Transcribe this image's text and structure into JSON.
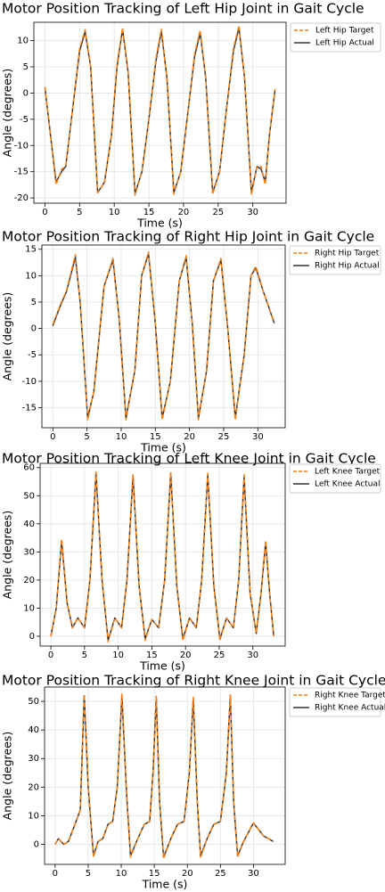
{
  "chart_data": [
    {
      "type": "line",
      "title": "Motor Position Tracking of Left Hip Joint in Gait Cycle",
      "x_label": "Time (s)",
      "y_label": "Angle (degrees)",
      "x": [
        0,
        0.8,
        1.6,
        2.4,
        3.0,
        4.0,
        5.0,
        5.8,
        6.6,
        7.6,
        8.6,
        9.6,
        10.4,
        11.2,
        12.0,
        13.0,
        14.0,
        15.0,
        16.0,
        16.8,
        17.6,
        18.6,
        19.6,
        20.6,
        21.6,
        22.4,
        23.2,
        24.2,
        25.2,
        26.2,
        27.2,
        28.0,
        28.8,
        29.8,
        30.6,
        31.2,
        31.8,
        32.4,
        33.2
      ],
      "series": [
        {
          "name": "Left Hip Target",
          "color": "#ff7f0e",
          "dashed": true,
          "values": [
            1.2,
            -8,
            -17.5,
            -14.5,
            -14,
            -3,
            8.5,
            12.1,
            5,
            -19,
            -17,
            -8,
            5.5,
            12.5,
            4,
            -19.5,
            -15,
            -5,
            6.5,
            12.2,
            3,
            -19.3,
            -15,
            -4,
            7.5,
            12,
            3,
            -19.3,
            -15,
            -3,
            8.5,
            12.9,
            3,
            -19.3,
            -14,
            -14,
            -17.5,
            -8,
            0.8
          ]
        },
        {
          "name": "Left Hip Actual",
          "color": "#333333",
          "dashed": false,
          "values": [
            1,
            -8,
            -17,
            -15,
            -14,
            -3,
            8,
            11.7,
            5,
            -19,
            -17,
            -8,
            5,
            12.2,
            4,
            -19.2,
            -15,
            -5,
            6,
            11.8,
            3,
            -19,
            -15,
            -4,
            7,
            11.5,
            3,
            -19,
            -15,
            -3,
            8,
            12.5,
            3,
            -19,
            -14,
            -14.5,
            -17,
            -8,
            0.5
          ]
        }
      ],
      "xlim": [
        -1.6,
        34.8
      ],
      "ylim": [
        -21,
        13.5
      ],
      "xticks": [
        0,
        5,
        10,
        15,
        20,
        25,
        30
      ],
      "yticks": [
        -20,
        -15,
        -10,
        -5,
        0,
        5,
        10
      ],
      "grid": true,
      "legend": "outside-right"
    },
    {
      "type": "line",
      "title": "Motor Position Tracking of Right Hip Joint in Gait Cycle",
      "x_label": "Time (s)",
      "y_label": "Angle (degrees)",
      "x": [
        0,
        1,
        2,
        3.3,
        4,
        5.1,
        6,
        7.5,
        8.8,
        9.7,
        10.7,
        12,
        13,
        14,
        15,
        16,
        17.2,
        18.5,
        19.5,
        20.4,
        21.3,
        22.5,
        23.5,
        24.6,
        25.6,
        26.7,
        28,
        29,
        29.7,
        30.8,
        32.4
      ],
      "series": [
        {
          "name": "Right Hip Target",
          "color": "#ff7f0e",
          "dashed": true,
          "values": [
            0.8,
            4.2,
            7.2,
            14,
            5,
            -17.3,
            -12,
            8,
            13.3,
            2,
            -17.3,
            -8,
            10,
            14.5,
            1,
            -17.3,
            -10,
            9,
            13.8,
            1,
            -17.3,
            -8,
            9,
            13.3,
            0,
            -17.3,
            -5,
            10,
            11.8,
            7,
            1.2
          ]
        },
        {
          "name": "Right Hip Actual",
          "color": "#333333",
          "dashed": false,
          "values": [
            0.5,
            4,
            7,
            13.5,
            5,
            -17,
            -12,
            8,
            13,
            2,
            -17,
            -8,
            10,
            14.2,
            1,
            -17,
            -10,
            9,
            13.5,
            1,
            -17,
            -8,
            9,
            13,
            0,
            -17,
            -5,
            10,
            11.5,
            7,
            1
          ]
        }
      ],
      "xlim": [
        -1.6,
        34
      ],
      "ylim": [
        -18.8,
        15.8
      ],
      "xticks": [
        0,
        5,
        10,
        15,
        20,
        25,
        30
      ],
      "yticks": [
        -15,
        -10,
        -5,
        0,
        5,
        10,
        15
      ],
      "grid": true,
      "legend": "outside-right"
    },
    {
      "type": "line",
      "title": "Motor Position Tracking of Left Knee Joint in Gait Cycle",
      "x_label": "Time (s)",
      "y_label": "Angle (degrees)",
      "x": [
        0,
        0.8,
        1.6,
        2.4,
        3.2,
        4,
        5,
        5.8,
        6.7,
        7.6,
        8.5,
        9.5,
        10.5,
        11.3,
        12.2,
        13.1,
        14,
        15,
        16,
        16.9,
        17.8,
        18.7,
        19.6,
        20.6,
        21.6,
        22.4,
        23.3,
        24.2,
        25.1,
        26.1,
        27.1,
        27.9,
        28.7,
        29.6,
        30.5,
        31.2,
        31.9,
        32.5,
        33.1
      ],
      "series": [
        {
          "name": "Left Knee Target",
          "color": "#ff7f0e",
          "dashed": true,
          "values": [
            0,
            10,
            34.5,
            12,
            3,
            6.5,
            3,
            20,
            58.5,
            20,
            -2,
            6.5,
            3,
            20,
            57.5,
            18,
            -1.5,
            6,
            3,
            20,
            58.5,
            18,
            -1.5,
            6.5,
            3,
            20,
            58,
            18,
            -1.5,
            6.5,
            3,
            20,
            57.5,
            15,
            1,
            15,
            34,
            15,
            0
          ]
        },
        {
          "name": "Left Knee Actual",
          "color": "#333333",
          "dashed": false,
          "values": [
            0,
            10,
            34,
            12,
            3,
            6.5,
            3,
            20,
            58,
            20,
            -1.5,
            6.5,
            3,
            20,
            57,
            18,
            -1,
            6,
            3,
            20,
            58,
            18,
            -1,
            6.5,
            3,
            20,
            57.5,
            18,
            -1,
            6.5,
            3,
            20,
            57,
            15,
            1,
            15,
            33.5,
            15,
            0
          ]
        }
      ],
      "xlim": [
        -1.6,
        34.8
      ],
      "ylim": [
        -3.5,
        61.5
      ],
      "xticks": [
        0,
        5,
        10,
        15,
        20,
        25,
        30
      ],
      "yticks": [
        0,
        10,
        20,
        30,
        40,
        50,
        60
      ],
      "grid": true,
      "legend": "outside-right"
    },
    {
      "type": "line",
      "title": "Motor Position Tracking of Right Knee Joint in Gait Cycle",
      "x_label": "Time (s)",
      "y_label": "Angle (degrees)",
      "x": [
        0,
        0.5,
        1.3,
        2,
        3,
        3.8,
        4.4,
        5,
        5.8,
        6.5,
        7.2,
        8,
        8.7,
        9.4,
        10.1,
        10.8,
        11.4,
        12.5,
        13.5,
        14.3,
        14.8,
        15.3,
        15.8,
        16.4,
        17.5,
        18.5,
        19.5,
        20.3,
        20.9,
        21.5,
        22,
        23,
        24,
        25,
        25.9,
        26.5,
        27,
        27.6,
        28.5,
        30,
        31.5,
        33
      ],
      "series": [
        {
          "name": "Right Knee Target",
          "color": "#ff7f0e",
          "dashed": true,
          "values": [
            0,
            2,
            0,
            1,
            7,
            12,
            52.5,
            20,
            -4.5,
            1,
            2,
            7,
            8,
            20,
            52.5,
            18,
            -4.5,
            2,
            7,
            8,
            25,
            52,
            15,
            -5,
            2,
            7,
            8,
            25,
            51.5,
            15,
            -4.5,
            2,
            7,
            8,
            25,
            52.5,
            15,
            -4.5,
            1,
            7.5,
            3,
            1
          ]
        },
        {
          "name": "Right Knee Actual",
          "color": "#333333",
          "dashed": false,
          "values": [
            0,
            2,
            0,
            1,
            7,
            12,
            52,
            20,
            -4,
            1,
            2,
            7,
            8,
            20,
            52,
            18,
            -4,
            2,
            7,
            8,
            25,
            51.5,
            15,
            -4.5,
            2,
            7,
            8,
            25,
            51,
            15,
            -4,
            2,
            7,
            8,
            25,
            52,
            15,
            -4,
            1,
            7.5,
            3,
            1
          ]
        }
      ],
      "xlim": [
        -1.6,
        34.8
      ],
      "ylim": [
        -7,
        55
      ],
      "xticks": [
        0,
        5,
        10,
        15,
        20,
        25,
        30
      ],
      "yticks": [
        0,
        10,
        20,
        30,
        40,
        50
      ],
      "grid": true,
      "legend": "outside-right"
    }
  ]
}
